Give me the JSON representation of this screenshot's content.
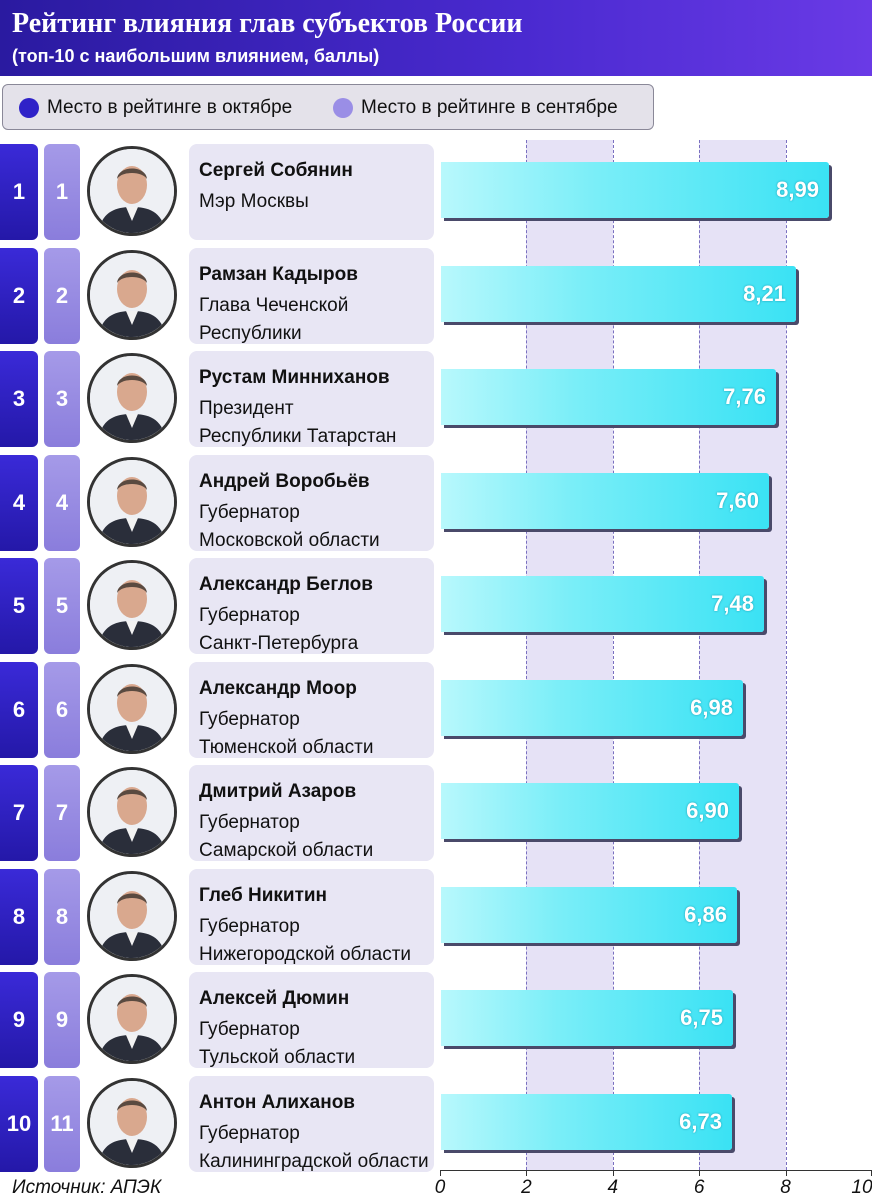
{
  "header": {
    "title": "Рейтинг влияния глав субъектов России",
    "subtitle": "(топ-10 с наибольшим влиянием, баллы)"
  },
  "legend": {
    "october": {
      "label": "Место в рейтинге в октябре",
      "color": "#2f22c8"
    },
    "september": {
      "label": "Место в рейтинге в сентябре",
      "color": "#9a8ee6"
    }
  },
  "colors": {
    "bar": "#3ae2f4",
    "header": "#3a22c0",
    "band": "#e4e0f6"
  },
  "source": "Источник: АПЭК",
  "rows": [
    {
      "rank_oct": "1",
      "rank_sep": "1",
      "name": "Сергей Собянин",
      "pos1": "Мэр Москвы",
      "pos2": "",
      "value_label": "8,99"
    },
    {
      "rank_oct": "2",
      "rank_sep": "2",
      "name": "Рамзан Кадыров",
      "pos1": "Глава Чеченской",
      "pos2": "Республики",
      "value_label": "8,21"
    },
    {
      "rank_oct": "3",
      "rank_sep": "3",
      "name": "Рустам Минниханов",
      "pos1": "Президент",
      "pos2": "Республики Татарстан",
      "value_label": "7,76"
    },
    {
      "rank_oct": "4",
      "rank_sep": "4",
      "name": "Андрей Воробьёв",
      "pos1": "Губернатор",
      "pos2": "Московской области",
      "value_label": "7,60"
    },
    {
      "rank_oct": "5",
      "rank_sep": "5",
      "name": "Александр Беглов",
      "pos1": "Губернатор",
      "pos2": "Санкт-Петербурга",
      "value_label": "7,48"
    },
    {
      "rank_oct": "6",
      "rank_sep": "6",
      "name": "Александр Моор",
      "pos1": "Губернатор",
      "pos2": "Тюменской области",
      "value_label": "6,98"
    },
    {
      "rank_oct": "7",
      "rank_sep": "7",
      "name": "Дмитрий Азаров",
      "pos1": "Губернатор",
      "pos2": "Самарской области",
      "value_label": "6,90"
    },
    {
      "rank_oct": "8",
      "rank_sep": "8",
      "name": "Глеб Никитин",
      "pos1": "Губернатор",
      "pos2": "Нижегородской области",
      "value_label": "6,86"
    },
    {
      "rank_oct": "9",
      "rank_sep": "9",
      "name": "Алексей Дюмин",
      "pos1": "Губернатор",
      "pos2": "Тульской области",
      "value_label": "6,75"
    },
    {
      "rank_oct": "10",
      "rank_sep": "11",
      "name": "Антон Алиханов",
      "pos1": "Губернатор",
      "pos2": "Калининградской области",
      "value_label": "6,73"
    }
  ],
  "chart_data": {
    "type": "bar",
    "orientation": "horizontal",
    "title": "Рейтинг влияния глав субъектов России",
    "subtitle": "(топ-10 с наибольшим влиянием, баллы)",
    "categories": [
      "Сергей Собянин",
      "Рамзан Кадыров",
      "Рустам Минниханов",
      "Андрей Воробьёв",
      "Александр Беглов",
      "Александр Моор",
      "Дмитрий Азаров",
      "Глеб Никитин",
      "Алексей Дюмин",
      "Антон Алиханов"
    ],
    "values": [
      8.99,
      8.21,
      7.76,
      7.6,
      7.48,
      6.98,
      6.9,
      6.86,
      6.75,
      6.73
    ],
    "xlim": [
      0,
      10
    ],
    "x_ticks": [
      "0",
      "2",
      "4",
      "6",
      "8",
      "10"
    ],
    "grid": true,
    "legend_position": "top-left"
  }
}
